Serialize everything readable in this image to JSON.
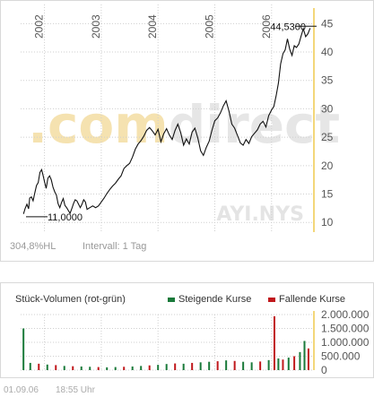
{
  "chart_data": [
    {
      "type": "line",
      "series_name": "AYI.NYS",
      "watermark": ".comdirect",
      "x_tick_labels": [
        "2002",
        "2003",
        "2004",
        "2005",
        "2006"
      ],
      "y_ticks": [
        10,
        15,
        20,
        25,
        30,
        35,
        40,
        45
      ],
      "ylim": [
        8.3,
        47.1
      ],
      "xlim": [
        2001.58,
        2006.73
      ],
      "grid": true,
      "annotations": {
        "low": "11,0000",
        "high": "44,5300"
      },
      "x": [
        2001.63,
        2001.66,
        2001.69,
        2001.72,
        2001.74,
        2001.77,
        2001.8,
        2001.83,
        2001.86,
        2001.89,
        2001.92,
        2001.95,
        2001.97,
        2002.0,
        2002.03,
        2002.06,
        2002.09,
        2002.12,
        2002.15,
        2002.18,
        2002.21,
        2002.24,
        2002.27,
        2002.3,
        2002.33,
        2002.36,
        2002.39,
        2002.42,
        2002.45,
        2002.48,
        2002.51,
        2002.54,
        2002.57,
        2002.6,
        2002.63,
        2002.66,
        2002.69,
        2002.72,
        2002.75,
        2002.8,
        2002.85,
        2002.9,
        2002.95,
        2003.0,
        2003.05,
        2003.1,
        2003.15,
        2003.2,
        2003.25,
        2003.3,
        2003.35,
        2003.4,
        2003.45,
        2003.5,
        2003.55,
        2003.6,
        2003.65,
        2003.7,
        2003.75,
        2003.8,
        2003.85,
        2003.9,
        2003.95,
        2004.0,
        2004.05,
        2004.1,
        2004.15,
        2004.2,
        2004.25,
        2004.3,
        2004.35,
        2004.4,
        2004.45,
        2004.5,
        2004.55,
        2004.6,
        2004.65,
        2004.7,
        2004.75,
        2004.8,
        2004.85,
        2004.9,
        2004.95,
        2005.0,
        2005.05,
        2005.1,
        2005.15,
        2005.2,
        2005.25,
        2005.3,
        2005.35,
        2005.4,
        2005.45,
        2005.5,
        2005.55,
        2005.6,
        2005.65,
        2005.7,
        2005.75,
        2005.8,
        2005.85,
        2005.9,
        2005.95,
        2006.0,
        2006.04,
        2006.08,
        2006.12,
        2006.16,
        2006.2,
        2006.24,
        2006.28,
        2006.32,
        2006.36,
        2006.4,
        2006.44,
        2006.48,
        2006.52,
        2006.56,
        2006.6,
        2006.64,
        2006.68
      ],
      "y": [
        11.5,
        12.5,
        13.2,
        12.4,
        14.3,
        14.5,
        13.8,
        15.2,
        16.5,
        17.0,
        18.8,
        19.3,
        18.5,
        17.2,
        16.0,
        17.8,
        18.2,
        17.5,
        16.2,
        15.4,
        14.8,
        13.3,
        12.6,
        13.5,
        14.2,
        13.0,
        12.6,
        12.1,
        11.6,
        12.4,
        13.3,
        14.0,
        13.8,
        13.2,
        12.6,
        13.2,
        14.0,
        13.6,
        12.3,
        12.6,
        12.9,
        12.6,
        12.9,
        13.6,
        14.3,
        15.1,
        15.8,
        16.4,
        16.9,
        17.6,
        18.2,
        19.5,
        20.0,
        20.4,
        21.5,
        22.9,
        23.8,
        24.4,
        25.2,
        26.2,
        26.7,
        26.1,
        25.4,
        26.4,
        24.2,
        25.6,
        26.5,
        25.4,
        24.6,
        26.2,
        27.3,
        25.8,
        23.6,
        24.7,
        23.8,
        25.9,
        26.6,
        24.9,
        22.6,
        21.8,
        23.2,
        24.3,
        26.2,
        27.9,
        28.4,
        29.3,
        30.5,
        31.4,
        29.6,
        27.3,
        26.6,
        25.3,
        24.0,
        23.6,
        24.6,
        23.9,
        25.1,
        25.7,
        26.3,
        27.3,
        27.8,
        26.8,
        28.8,
        29.8,
        30.4,
        32.3,
        34.5,
        37.9,
        39.7,
        40.4,
        42.3,
        40.5,
        39.4,
        41.1,
        40.8,
        41.4,
        42.8,
        44.1,
        42.7,
        43.2,
        44.2
      ]
    },
    {
      "type": "bar",
      "title": "Stück-Volumen (rot-grün)",
      "legend": [
        {
          "name": "Steigende Kurse",
          "color": "#1a7a3a"
        },
        {
          "name": "Fallende Kurse",
          "color": "#c0181c"
        }
      ],
      "y_tick_labels": [
        "0",
        "500.000",
        "1.000.000",
        "1.500.000",
        "2.000.000"
      ],
      "ylim": [
        0,
        2000000
      ],
      "x": [
        2001.63,
        2001.75,
        2001.9,
        2002.05,
        2002.2,
        2002.35,
        2002.5,
        2002.65,
        2002.8,
        2002.95,
        2003.1,
        2003.25,
        2003.4,
        2003.55,
        2003.7,
        2003.85,
        2004.0,
        2004.15,
        2004.3,
        2004.45,
        2004.6,
        2004.75,
        2004.9,
        2005.05,
        2005.2,
        2005.35,
        2005.5,
        2005.65,
        2005.8,
        2005.95,
        2006.05,
        2006.12,
        2006.2,
        2006.3,
        2006.4,
        2006.5,
        2006.58,
        2006.65
      ],
      "values": [
        1500000,
        260000,
        230000,
        200000,
        180000,
        150000,
        140000,
        130000,
        120000,
        110000,
        100000,
        110000,
        120000,
        130000,
        150000,
        170000,
        190000,
        220000,
        240000,
        230000,
        260000,
        280000,
        300000,
        320000,
        350000,
        330000,
        300000,
        280000,
        310000,
        360000,
        1940000,
        420000,
        380000,
        450000,
        500000,
        650000,
        1050000,
        780000
      ],
      "rising": [
        true,
        true,
        false,
        true,
        false,
        true,
        false,
        true,
        true,
        false,
        true,
        true,
        false,
        true,
        true,
        false,
        true,
        true,
        false,
        true,
        false,
        true,
        true,
        false,
        true,
        false,
        true,
        true,
        false,
        true,
        false,
        true,
        false,
        true,
        false,
        true,
        true,
        false
      ]
    }
  ],
  "info": {
    "change": "304,8%HL",
    "interval": "Intervall: 1 Tag"
  },
  "footer": {
    "date": "01.09.06",
    "time": "18:55 Uhr"
  },
  "colors": {
    "line": "#111111",
    "grid": "#cfcfcf",
    "axis_accent": "#f3d77a",
    "watermark": "#f5e2b0",
    "watermark2": "#e6e6e6"
  }
}
